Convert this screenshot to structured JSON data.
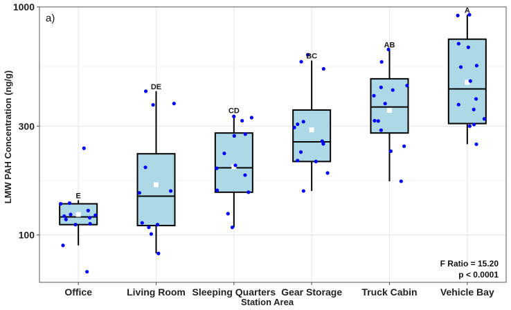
{
  "chart_data": {
    "type": "box",
    "panel_label": "a)",
    "xlabel": "Station Area",
    "ylabel": "LMW PAH Concentration (ng/g)",
    "y_scale": "log",
    "ylim": [
      62,
      1000
    ],
    "y_ticks": [
      {
        "value": 100,
        "label": "100"
      },
      {
        "value": 300,
        "label": "300"
      },
      {
        "value": 1000,
        "label": "1000"
      }
    ],
    "grid": true,
    "colors": {
      "box_fill": "#add8e6",
      "points": "#0000ff",
      "mean_marker": "#ffffff",
      "outline": "#000000"
    },
    "categories": [
      "Office",
      "Living Room",
      "Sleeping Quarters",
      "Gear Storage",
      "Truck Cabin",
      "Vehicle Bay"
    ],
    "boxes": [
      {
        "category": "Office",
        "min": 90,
        "q1": 111,
        "median": 120,
        "q3": 137,
        "max": 142,
        "mean": 123,
        "letter": "E",
        "points": [
          69,
          90,
          111,
          112,
          117,
          119,
          121,
          122,
          123,
          128,
          137,
          138,
          240
        ]
      },
      {
        "category": "Living Room",
        "min": 83,
        "q1": 110,
        "median": 148,
        "q3": 227,
        "max": 427,
        "mean": 166,
        "letter": "DE",
        "points": [
          83,
          101,
          108,
          111,
          113,
          153,
          156,
          198,
          372,
          377,
          427
        ]
      },
      {
        "category": "Sleeping Quarters",
        "min": 108,
        "q1": 154,
        "median": 197,
        "q3": 280,
        "max": 335,
        "mean": 199,
        "letter": "CD",
        "points": [
          108,
          124,
          154,
          157,
          183,
          196,
          202,
          228,
          272,
          277,
          317,
          327,
          331
        ]
      },
      {
        "category": "Gear Storage",
        "min": 156,
        "q1": 210,
        "median": 256,
        "q3": 353,
        "max": 582,
        "mean": 289,
        "letter": "BC",
        "points": [
          156,
          187,
          210,
          212,
          231,
          251,
          258,
          296,
          306,
          314,
          535,
          575,
          617
        ]
      },
      {
        "category": "Truck Cabin",
        "min": 172,
        "q1": 280,
        "median": 364,
        "q3": 484,
        "max": 651,
        "mean": 352,
        "letter": "AB",
        "points": [
          172,
          233,
          245,
          288,
          316,
          317,
          377,
          408,
          432,
          444,
          452,
          574,
          651
        ]
      },
      {
        "category": "Vehicle Bay",
        "min": 250,
        "q1": 308,
        "median": 437,
        "q3": 722,
        "max": 924,
        "mean": 467,
        "letter": "A",
        "points": [
          250,
          300,
          305,
          323,
          355,
          373,
          395,
          473,
          545,
          553,
          665,
          690,
          917,
          924
        ]
      }
    ],
    "annotation": {
      "lines": [
        "F Ratio = 15.20",
        "p < 0.0001"
      ]
    }
  }
}
